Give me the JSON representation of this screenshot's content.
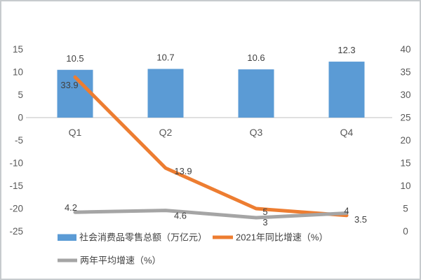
{
  "chart_data": {
    "type": "combo",
    "title": "",
    "categories": [
      "Q1",
      "Q2",
      "Q3",
      "Q4"
    ],
    "series": [
      {
        "name": "社会消费品零售总额（万亿元）",
        "type": "bar",
        "axis": "left",
        "color": "#5B9BD5",
        "values": [
          10.5,
          10.7,
          10.6,
          12.3
        ],
        "labels": [
          "10.5",
          "10.7",
          "10.6",
          "12.3"
        ]
      },
      {
        "name": "2021年同比增速（%）",
        "type": "line",
        "axis": "right",
        "color": "#ED7D31",
        "values": [
          33.9,
          13.9,
          5,
          3.5
        ],
        "labels": [
          "33.9",
          "13.9",
          "5",
          "3.5"
        ]
      },
      {
        "name": "两年平均增速（%）",
        "type": "line",
        "axis": "right",
        "color": "#A5A5A5",
        "values": [
          4.2,
          4.6,
          3,
          4
        ],
        "labels": [
          "4.2",
          "4.6",
          "3",
          "4"
        ]
      }
    ],
    "left_axis": {
      "min": -25,
      "max": 15,
      "step": 5,
      "tick_labels": [
        "15",
        "10",
        "5",
        "0",
        "-5",
        "-10",
        "-15",
        "-20",
        "-25"
      ]
    },
    "right_axis": {
      "min": 0,
      "max": 40,
      "step": 5,
      "tick_labels": [
        "40",
        "35",
        "30",
        "25",
        "20",
        "15",
        "10",
        "5",
        "0"
      ]
    },
    "grid": false,
    "legend_position": "bottom-left",
    "colors": {
      "bar": "#5B9BD5",
      "line_2021": "#ED7D31",
      "line_avg": "#A5A5A5",
      "axis_line": "#D6D6D6",
      "tick_text": "#595959",
      "label_text": "#404040"
    }
  }
}
